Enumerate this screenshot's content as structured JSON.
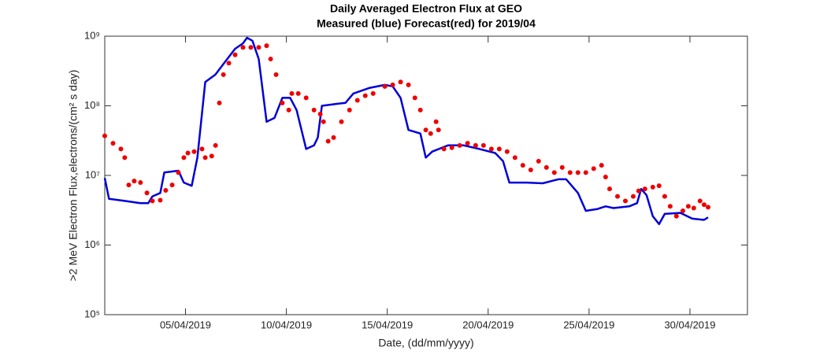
{
  "chart_data": {
    "type": "line",
    "title": "Daily Averaged Electron Flux at GEO",
    "subtitle": "Measured (blue) Forecast(red) for 2019/04",
    "x_label": "Date, (dd/mm/yyyy)",
    "y_label": ">2 MeV Electron Flux,electrons/(cm² s day)",
    "yscale": "log",
    "xlim": [
      1,
      32.85
    ],
    "ylim": [
      100000,
      1000000000
    ],
    "xticks": [
      {
        "value": 5,
        "label": "05/04/2019"
      },
      {
        "value": 10,
        "label": "10/04/2019"
      },
      {
        "value": 15,
        "label": "15/04/2019"
      },
      {
        "value": 20,
        "label": "20/04/2019"
      },
      {
        "value": 25,
        "label": "25/04/2019"
      },
      {
        "value": 30,
        "label": "30/04/2019"
      }
    ],
    "yticks": [
      {
        "value": 100000,
        "label": "10⁵"
      },
      {
        "value": 1000000,
        "label": "10⁶"
      },
      {
        "value": 10000000,
        "label": "10⁷"
      },
      {
        "value": 100000000,
        "label": "10⁸"
      },
      {
        "value": 1000000000,
        "label": "10⁹"
      }
    ],
    "series": [
      {
        "name": "Measured",
        "color": "#0000d8",
        "style": "line",
        "x": [
          1.0,
          1.21,
          1.99,
          2.77,
          3.16,
          3.36,
          3.75,
          3.95,
          4.65,
          4.92,
          5.31,
          5.59,
          5.98,
          6.48,
          7.07,
          7.46,
          7.85,
          8.05,
          8.32,
          8.63,
          9.02,
          9.41,
          9.8,
          10.19,
          10.51,
          10.98,
          11.37,
          11.56,
          11.76,
          12.54,
          12.93,
          13.32,
          14.1,
          14.88,
          15.27,
          15.66,
          16.05,
          16.64,
          16.91,
          17.23,
          18.01,
          18.79,
          19.57,
          20.35,
          20.74,
          21.05,
          21.91,
          22.7,
          23.48,
          23.87,
          24.45,
          24.84,
          25.43,
          25.82,
          26.21,
          26.99,
          27.38,
          27.58,
          27.85,
          28.16,
          28.47,
          28.75,
          29.53,
          30.11,
          30.7,
          30.9
        ],
        "values": [
          9200000,
          4600000,
          4300000,
          4000000,
          4000000,
          5000000,
          5600000,
          11000000,
          11700000,
          7900000,
          7100000,
          18000000,
          220000000,
          280000000,
          470000000,
          660000000,
          790000000,
          950000000,
          860000000,
          470000000,
          59000000,
          67000000,
          130000000,
          130000000,
          87000000,
          24000000,
          27000000,
          35000000,
          100000000,
          107000000,
          110000000,
          150000000,
          180000000,
          200000000,
          190000000,
          130000000,
          45000000,
          40000000,
          18000000,
          22000000,
          27000000,
          27000000,
          24000000,
          21000000,
          16000000,
          7900000,
          7900000,
          7700000,
          8800000,
          8800000,
          5600000,
          3100000,
          3300000,
          3600000,
          3400000,
          3600000,
          4000000,
          6400000,
          5200000,
          2600000,
          2000000,
          2800000,
          2900000,
          2400000,
          2300000,
          2500000
        ]
      },
      {
        "name": "Forecast",
        "color": "#ee0000",
        "style": "dots",
        "x": [
          1.0,
          1.41,
          1.8,
          1.99,
          2.19,
          2.46,
          2.77,
          3.09,
          3.36,
          3.75,
          4.02,
          4.34,
          4.65,
          4.92,
          5.12,
          5.43,
          5.82,
          5.98,
          6.3,
          6.49,
          6.68,
          6.88,
          7.15,
          7.46,
          7.85,
          8.24,
          8.63,
          9.02,
          9.22,
          9.49,
          9.8,
          10.12,
          10.27,
          10.59,
          10.98,
          11.37,
          11.68,
          11.84,
          12.07,
          12.34,
          12.73,
          13.13,
          13.52,
          13.91,
          14.3,
          14.88,
          15.27,
          15.66,
          16.05,
          16.37,
          16.64,
          16.91,
          17.15,
          17.42,
          17.54,
          17.81,
          18.2,
          18.59,
          18.98,
          19.38,
          19.77,
          20.16,
          20.55,
          20.94,
          21.33,
          21.72,
          22.11,
          22.5,
          22.89,
          23.28,
          23.67,
          24.06,
          24.45,
          24.84,
          25.23,
          25.62,
          25.82,
          26.02,
          26.41,
          26.8,
          27.19,
          27.46,
          27.77,
          28.16,
          28.47,
          28.75,
          29.02,
          29.33,
          29.65,
          29.92,
          30.19,
          30.5,
          30.7,
          30.9
        ],
        "values": [
          37000000,
          29000000,
          24000000,
          18000000,
          7300000,
          8300000,
          7900000,
          5600000,
          4300000,
          4400000,
          6100000,
          7300000,
          11000000,
          18000000,
          21000000,
          22000000,
          24000000,
          18000000,
          19000000,
          27000000,
          110000000,
          280000000,
          410000000,
          540000000,
          690000000,
          690000000,
          690000000,
          730000000,
          470000000,
          280000000,
          110000000,
          87000000,
          150000000,
          150000000,
          130000000,
          87000000,
          76000000,
          59000000,
          31000000,
          35000000,
          59000000,
          87000000,
          120000000,
          140000000,
          150000000,
          190000000,
          200000000,
          220000000,
          200000000,
          130000000,
          87000000,
          45000000,
          40000000,
          59000000,
          45000000,
          24000000,
          25000000,
          27000000,
          29000000,
          27000000,
          27000000,
          24000000,
          24000000,
          22000000,
          18000000,
          14000000,
          12000000,
          16000000,
          13000000,
          11000000,
          13000000,
          11000000,
          11000000,
          11000000,
          12500000,
          14000000,
          9500000,
          6400000,
          5000000,
          4300000,
          5000000,
          6000000,
          6400000,
          6800000,
          7100000,
          5000000,
          3600000,
          2600000,
          3100000,
          3600000,
          3400000,
          4300000,
          3800000,
          3500000
        ]
      }
    ]
  }
}
